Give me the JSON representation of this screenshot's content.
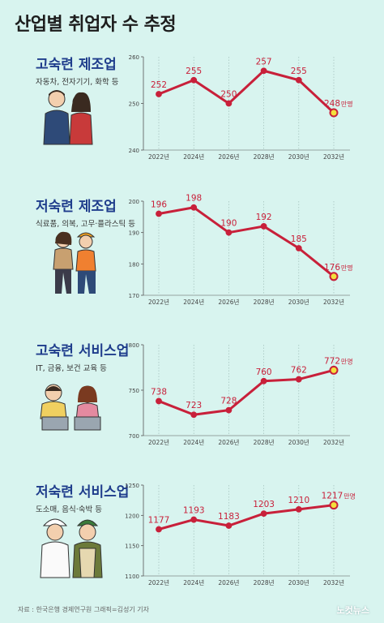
{
  "title": "산업별 취업자 수 추정",
  "footer": "자료 : 한국은행 경제연구원    그래픽=김성기 기자",
  "brand": "노컷뉴스",
  "colors": {
    "line": "#c8203a",
    "point": "#c8203a",
    "last_point": "#f4e03c",
    "heading": "#1f3d8c",
    "grid": "#9fbdb8"
  },
  "chart_data": [
    {
      "type": "line",
      "title": "고숙련 제조업",
      "subtitle": "자동차, 전자기기, 화학 등",
      "x": [
        "2022년",
        "2024년",
        "2026년",
        "2028년",
        "2030년",
        "2032년"
      ],
      "y_ticks": [
        "260",
        "250",
        "240"
      ],
      "ylim": [
        240,
        260
      ],
      "values": [
        252,
        255,
        250,
        257,
        255,
        248
      ],
      "labels": [
        "252",
        "255",
        "250",
        "257",
        "255",
        "248"
      ],
      "unit": "만명"
    },
    {
      "type": "line",
      "title": "저숙련 제조업",
      "subtitle": "식료품, 의복, 고무·플라스틱 등",
      "x": [
        "2022년",
        "2024년",
        "2026년",
        "2028년",
        "2030년",
        "2032년"
      ],
      "y_ticks": [
        "200",
        "190",
        "180",
        "170"
      ],
      "ylim": [
        170,
        200
      ],
      "values": [
        196,
        198,
        190,
        192,
        185,
        176
      ],
      "labels": [
        "196",
        "198",
        "190",
        "192",
        "185",
        "176"
      ],
      "unit": "만명"
    },
    {
      "type": "line",
      "title": "고숙련 서비스업",
      "subtitle": "IT, 금융, 보건 교육 등",
      "x": [
        "2022년",
        "2024년",
        "2026년",
        "2028년",
        "2030년",
        "2032년"
      ],
      "y_ticks": [
        "800",
        "750",
        "700"
      ],
      "ylim": [
        700,
        800
      ],
      "values": [
        738,
        723,
        728,
        760,
        762,
        772
      ],
      "labels": [
        "738",
        "723",
        "728",
        "760",
        "762",
        "772"
      ],
      "unit": "만명"
    },
    {
      "type": "line",
      "title": "저숙련 서비스업",
      "subtitle": "도소매, 음식·숙박 등",
      "x": [
        "2022년",
        "2024년",
        "2026년",
        "2028년",
        "2030년",
        "2032년"
      ],
      "y_ticks": [
        "1250",
        "1200",
        "1150",
        "1100"
      ],
      "ylim": [
        1100,
        1250
      ],
      "values": [
        1177,
        1193,
        1183,
        1203,
        1210,
        1217
      ],
      "labels": [
        "1177",
        "1193",
        "1183",
        "1203",
        "1210",
        "1217"
      ],
      "unit": "만명"
    }
  ]
}
